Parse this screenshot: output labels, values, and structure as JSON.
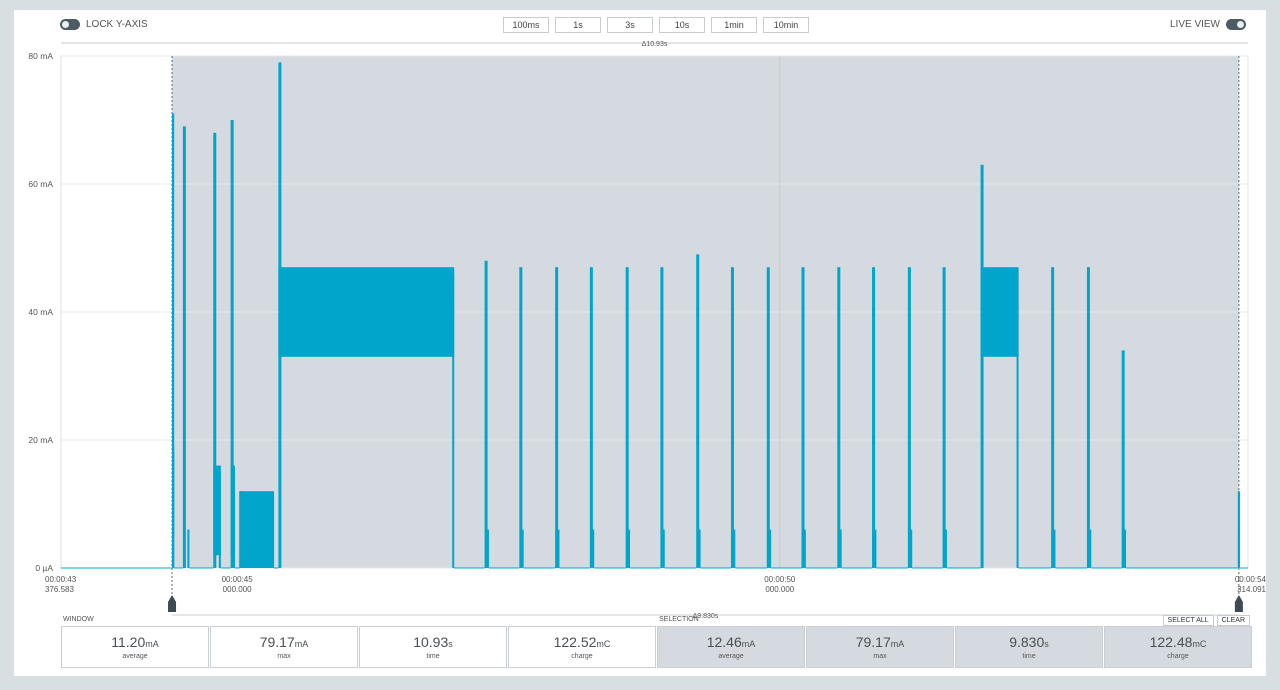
{
  "toolbar": {
    "lock_label": "LOCK Y-AXIS",
    "live_label": "LIVE VIEW",
    "zoom_buttons": [
      "100ms",
      "1s",
      "3s",
      "10s",
      "1min",
      "10min"
    ]
  },
  "window_span_label": "Δ10.93s",
  "selection_span_label": "Δ9.830s",
  "chart_data": {
    "type": "line",
    "xlabel": "",
    "ylabel": "",
    "ylim": [
      0,
      80
    ],
    "yticks": [
      "80 mA",
      "60 mA",
      "40 mA",
      "20 mA",
      "0 µA"
    ],
    "xticks": [
      {
        "time": "00:00:43",
        "ms": "376.583"
      },
      {
        "time": "00:00:45",
        "ms": "000.000"
      },
      {
        "time": "00:00:50",
        "ms": "000.000"
      },
      {
        "time": "00:00:54",
        "ms": "314.091"
      }
    ],
    "x_range_s": [
      43.377,
      54.314
    ],
    "selection_s": [
      44.4,
      54.23
    ],
    "color": "#00a5cc",
    "series": [
      {
        "bursts": [
          {
            "start": 44.4,
            "end": 44.42,
            "peak": 71,
            "level": 12
          },
          {
            "start": 44.5,
            "end": 44.56,
            "peak": 69,
            "level": 0
          },
          {
            "start": 44.78,
            "end": 44.85,
            "peak": 68,
            "level": 9
          },
          {
            "start": 44.94,
            "end": 44.98,
            "peak": 70,
            "level": 9
          },
          {
            "start": 45.02,
            "end": 45.34,
            "peak": 12,
            "level": 5
          },
          {
            "start": 45.38,
            "end": 47.0,
            "peak": 79,
            "level": 40
          },
          {
            "start": 47.28,
            "end": 47.32,
            "peak": 48,
            "level": 0
          },
          {
            "start": 47.6,
            "end": 47.64,
            "peak": 47,
            "level": 0
          },
          {
            "start": 47.93,
            "end": 47.97,
            "peak": 47,
            "level": 0
          },
          {
            "start": 48.25,
            "end": 48.29,
            "peak": 47,
            "level": 0
          },
          {
            "start": 48.58,
            "end": 48.62,
            "peak": 47,
            "level": 0
          },
          {
            "start": 48.9,
            "end": 48.94,
            "peak": 47,
            "level": 0
          },
          {
            "start": 49.23,
            "end": 49.27,
            "peak": 49,
            "level": 0
          },
          {
            "start": 49.55,
            "end": 49.59,
            "peak": 47,
            "level": 0
          },
          {
            "start": 49.88,
            "end": 49.92,
            "peak": 47,
            "level": 0
          },
          {
            "start": 50.2,
            "end": 50.24,
            "peak": 47,
            "level": 0
          },
          {
            "start": 50.53,
            "end": 50.57,
            "peak": 47,
            "level": 0
          },
          {
            "start": 50.85,
            "end": 50.89,
            "peak": 47,
            "level": 0
          },
          {
            "start": 51.18,
            "end": 51.22,
            "peak": 47,
            "level": 0
          },
          {
            "start": 51.5,
            "end": 51.54,
            "peak": 47,
            "level": 0
          },
          {
            "start": 51.85,
            "end": 52.2,
            "peak": 63,
            "level": 40
          },
          {
            "start": 52.5,
            "end": 52.54,
            "peak": 47,
            "level": 0
          },
          {
            "start": 52.83,
            "end": 52.87,
            "peak": 47,
            "level": 0
          },
          {
            "start": 53.15,
            "end": 53.19,
            "peak": 34,
            "level": 0
          },
          {
            "start": 54.22,
            "end": 54.24,
            "peak": 12,
            "level": 0
          }
        ]
      }
    ]
  },
  "window": {
    "label": "WINDOW",
    "stats": [
      {
        "value": "11.20",
        "unit": "mA",
        "label": "average"
      },
      {
        "value": "79.17",
        "unit": "mA",
        "label": "max"
      },
      {
        "value": "10.93",
        "unit": "s",
        "label": "time"
      },
      {
        "value": "122.52",
        "unit": "mC",
        "label": "charge"
      }
    ]
  },
  "selection": {
    "label": "SELECTION",
    "select_all": "SELECT ALL",
    "clear": "CLEAR",
    "stats": [
      {
        "value": "12.46",
        "unit": "mA",
        "label": "average"
      },
      {
        "value": "79.17",
        "unit": "mA",
        "label": "max"
      },
      {
        "value": "9.830",
        "unit": "s",
        "label": "time"
      },
      {
        "value": "122.48",
        "unit": "mC",
        "label": "charge"
      }
    ]
  }
}
